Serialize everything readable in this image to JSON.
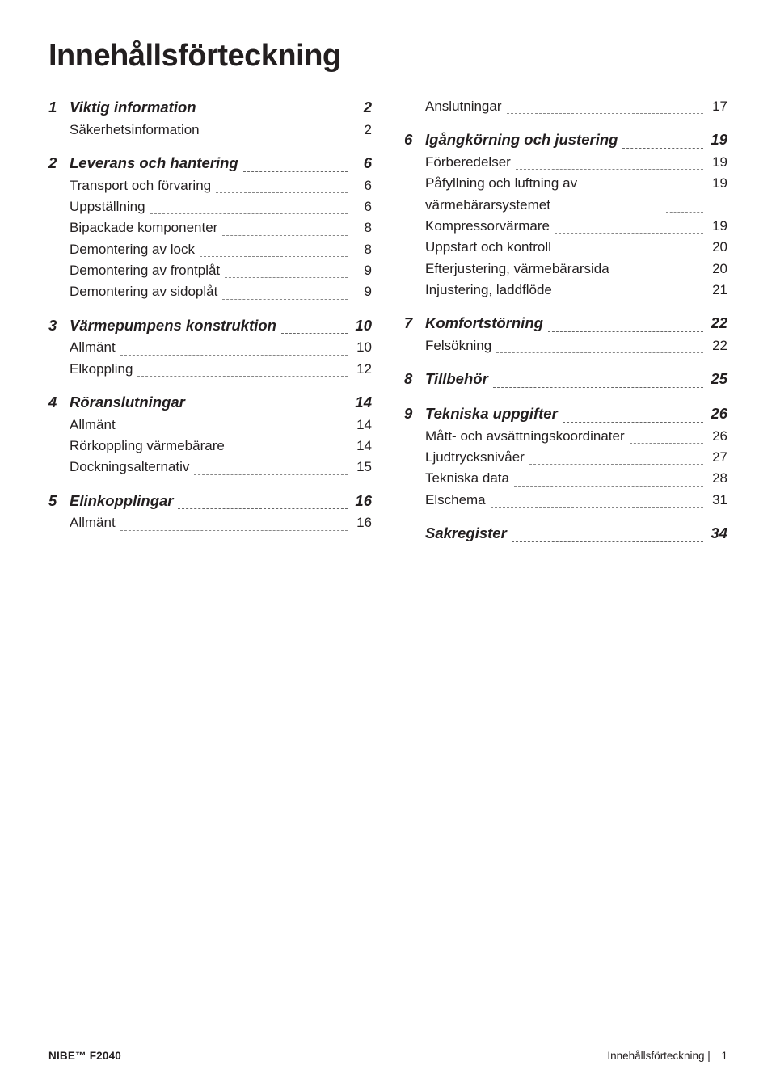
{
  "title": "Innehållsförteckning",
  "footer": {
    "left": "NIBE™ F2040",
    "right_label": "Innehållsförteckning",
    "right_sep": " | ",
    "page_number": "1"
  },
  "columns": [
    [
      {
        "type": "head",
        "num": "1",
        "label": "Viktig information",
        "page": "2"
      },
      {
        "type": "sub",
        "label": "Säkerhetsinformation",
        "page": "2"
      },
      {
        "type": "head",
        "num": "2",
        "label": "Leverans och hantering",
        "page": "6"
      },
      {
        "type": "sub",
        "label": "Transport och förvaring",
        "page": "6"
      },
      {
        "type": "sub",
        "label": "Uppställning",
        "page": "6"
      },
      {
        "type": "sub",
        "label": "Bipackade komponenter",
        "page": "8"
      },
      {
        "type": "sub",
        "label": "Demontering av lock",
        "page": "8"
      },
      {
        "type": "sub",
        "label": "Demontering av frontplåt",
        "page": "9"
      },
      {
        "type": "sub",
        "label": "Demontering av sidoplåt",
        "page": "9"
      },
      {
        "type": "head",
        "num": "3",
        "label": "Värmepumpens konstruktion",
        "page": "10"
      },
      {
        "type": "sub",
        "label": "Allmänt",
        "page": "10"
      },
      {
        "type": "sub",
        "label": "Elkoppling",
        "page": "12"
      },
      {
        "type": "head",
        "num": "4",
        "label": "Röranslutningar",
        "page": "14"
      },
      {
        "type": "sub",
        "label": "Allmänt",
        "page": "14"
      },
      {
        "type": "sub",
        "label": "Rörkoppling värmebärare",
        "page": "14"
      },
      {
        "type": "sub",
        "label": "Dockningsalternativ",
        "page": "15"
      },
      {
        "type": "head",
        "num": "5",
        "label": "Elinkopplingar",
        "page": "16"
      },
      {
        "type": "sub",
        "label": "Allmänt",
        "page": "16"
      }
    ],
    [
      {
        "type": "sub",
        "label": "Anslutningar",
        "page": "17"
      },
      {
        "type": "head",
        "num": "6",
        "label": "Igångkörning och justering",
        "page": "19"
      },
      {
        "type": "sub",
        "label": "Förberedelser",
        "page": "19"
      },
      {
        "type": "sub",
        "label": "Påfyllning och luftning av värmebärarsystemet",
        "page": "19"
      },
      {
        "type": "sub",
        "label": "Kompressorvärmare",
        "page": "19"
      },
      {
        "type": "sub",
        "label": "Uppstart och kontroll",
        "page": "20"
      },
      {
        "type": "sub",
        "label": "Efterjustering, värmebärarsida",
        "page": "20"
      },
      {
        "type": "sub",
        "label": "Injustering, laddflöde",
        "page": "21"
      },
      {
        "type": "head",
        "num": "7",
        "label": "Komfortstörning",
        "page": "22"
      },
      {
        "type": "sub",
        "label": "Felsökning",
        "page": "22"
      },
      {
        "type": "head",
        "num": "8",
        "label": "Tillbehör",
        "page": "25"
      },
      {
        "type": "head",
        "num": "9",
        "label": "Tekniska uppgifter",
        "page": "26"
      },
      {
        "type": "sub",
        "label": "Mått- och avsättningskoordinater",
        "page": "26"
      },
      {
        "type": "sub",
        "label": "Ljudtrycksnivåer",
        "page": "27"
      },
      {
        "type": "sub",
        "label": "Tekniska data",
        "page": "28"
      },
      {
        "type": "sub",
        "label": "Elschema",
        "page": "31"
      },
      {
        "type": "head",
        "num": "",
        "label": "Sakregister",
        "page": "34"
      }
    ]
  ]
}
